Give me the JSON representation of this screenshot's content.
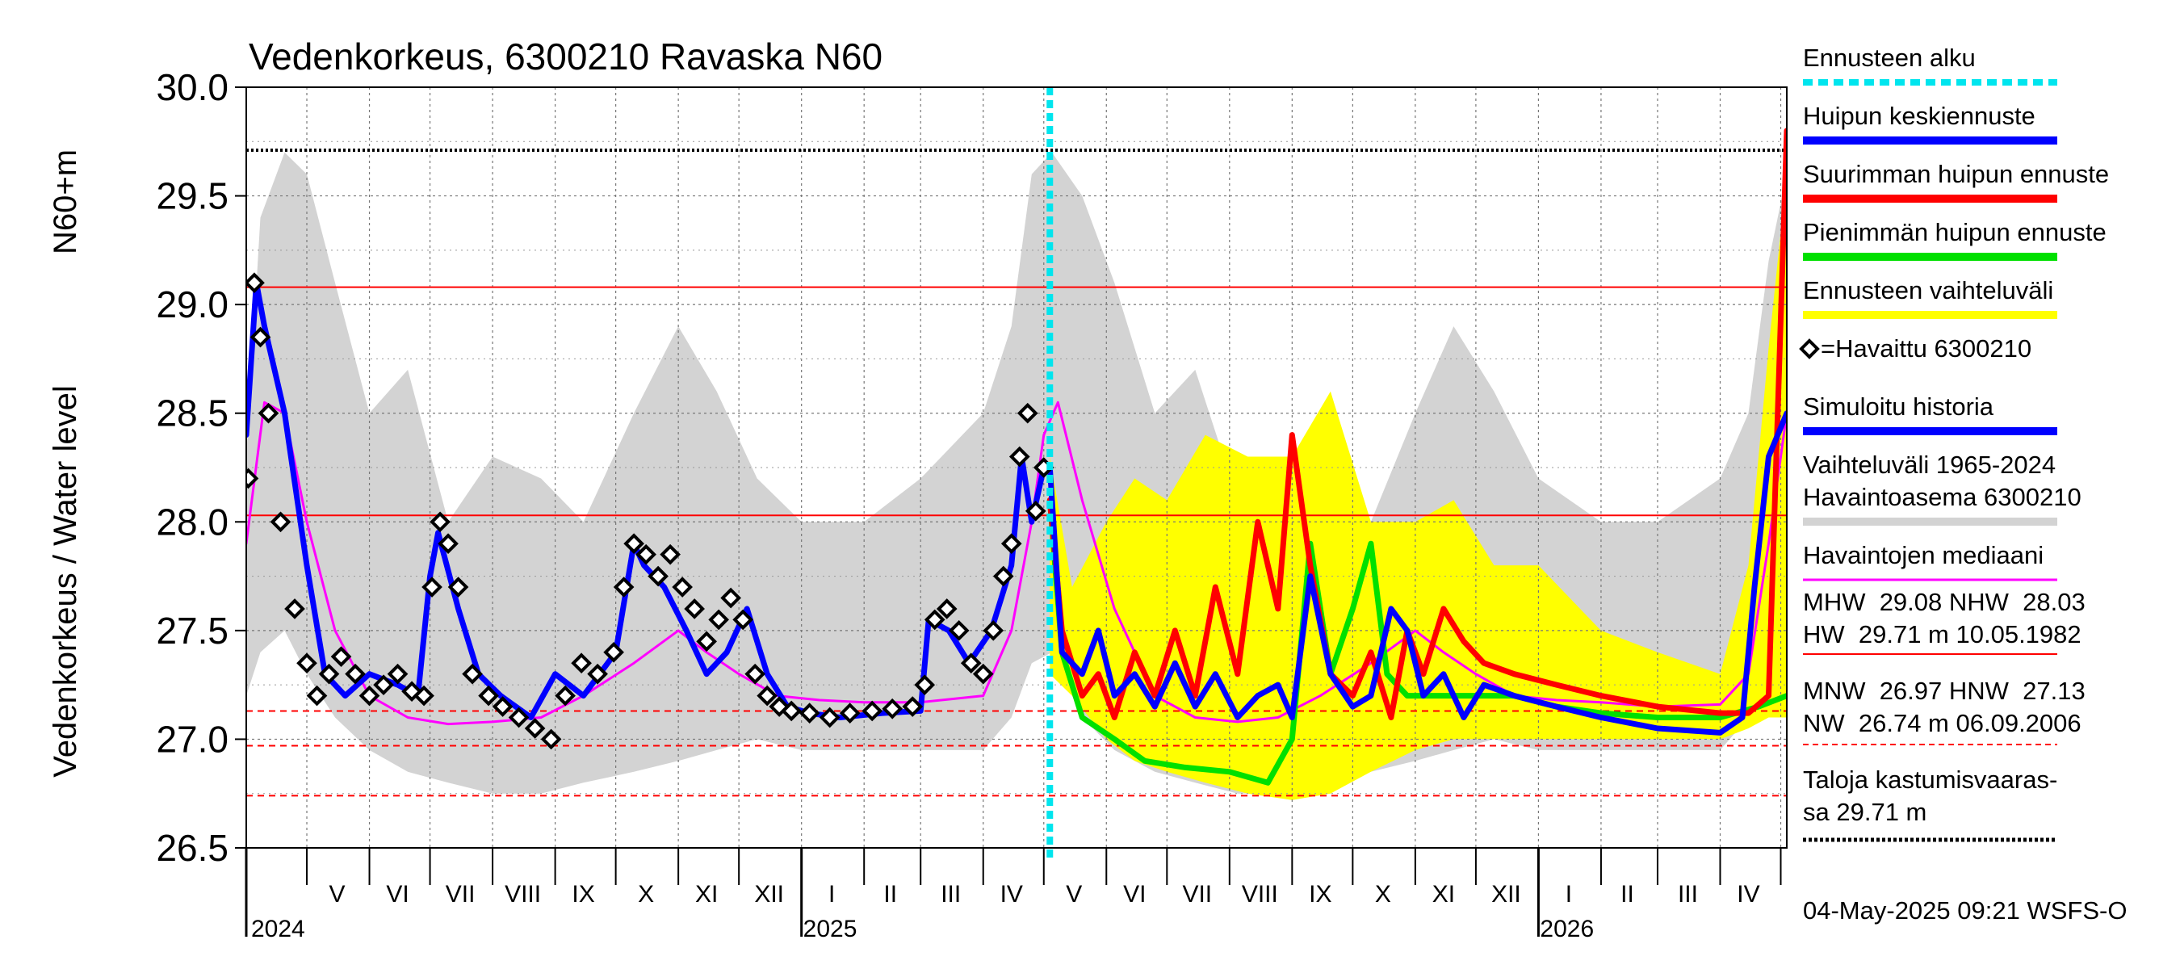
{
  "chart_data": {
    "type": "line",
    "title": "Vedenkorkeus, 6300210 Ravaska N60",
    "ylabel_main": "Vedenkorkeus / Water level",
    "ylabel_unit": "N60+m",
    "ylim": [
      26.5,
      30.0
    ],
    "y_ticks": [
      "26.5",
      "27.0",
      "27.5",
      "28.0",
      "28.5",
      "29.0",
      "29.5",
      "30.0"
    ],
    "x_range": [
      "2024-04-01",
      "2026-05-04"
    ],
    "month_labels": [
      {
        "label": "V",
        "date": "2024-05-16"
      },
      {
        "label": "VI",
        "date": "2024-06-15"
      },
      {
        "label": "VII",
        "date": "2024-07-16"
      },
      {
        "label": "VIII",
        "date": "2024-08-16"
      },
      {
        "label": "IX",
        "date": "2024-09-15"
      },
      {
        "label": "X",
        "date": "2024-10-16"
      },
      {
        "label": "XI",
        "date": "2024-11-15"
      },
      {
        "label": "XII",
        "date": "2024-12-16"
      },
      {
        "label": "I",
        "date": "2025-01-16"
      },
      {
        "label": "II",
        "date": "2025-02-14"
      },
      {
        "label": "III",
        "date": "2025-03-16"
      },
      {
        "label": "IV",
        "date": "2025-04-15"
      },
      {
        "label": "V",
        "date": "2025-05-16"
      },
      {
        "label": "VI",
        "date": "2025-06-15"
      },
      {
        "label": "VII",
        "date": "2025-07-16"
      },
      {
        "label": "VIII",
        "date": "2025-08-16"
      },
      {
        "label": "IX",
        "date": "2025-09-15"
      },
      {
        "label": "X",
        "date": "2025-10-16"
      },
      {
        "label": "XI",
        "date": "2025-11-15"
      },
      {
        "label": "XII",
        "date": "2025-12-16"
      },
      {
        "label": "I",
        "date": "2026-01-16"
      },
      {
        "label": "II",
        "date": "2026-02-14"
      },
      {
        "label": "III",
        "date": "2026-03-16"
      },
      {
        "label": "IV",
        "date": "2026-04-15"
      }
    ],
    "year_labels": [
      {
        "label": "2024",
        "date": "2024-04-01"
      },
      {
        "label": "2025",
        "date": "2025-01-01"
      },
      {
        "label": "2026",
        "date": "2026-01-01"
      }
    ],
    "forecast_start": "2025-05-04",
    "reference_lines": [
      {
        "name": "HW",
        "value": 29.71,
        "color": "#000000",
        "style": "dotted"
      },
      {
        "name": "MHW",
        "value": 29.08,
        "color": "#ff0000",
        "style": "solid"
      },
      {
        "name": "NHW",
        "value": 28.03,
        "color": "#ff0000",
        "style": "solid"
      },
      {
        "name": "HNW",
        "value": 27.13,
        "color": "#ff0000",
        "style": "dashed"
      },
      {
        "name": "MNW",
        "value": 26.97,
        "color": "#ff0000",
        "style": "dashed"
      },
      {
        "name": "NW",
        "value": 26.74,
        "color": "#ff0000",
        "style": "dashed"
      }
    ],
    "series": [
      {
        "name": "Vaihteluväli 1965-2024 Havaintoasema 6300210",
        "kind": "band",
        "color": "#d3d3d3",
        "x": [
          "2024-04-01",
          "2024-04-08",
          "2024-04-20",
          "2024-05-01",
          "2024-05-15",
          "2024-06-01",
          "2024-06-20",
          "2024-07-10",
          "2024-08-01",
          "2024-08-25",
          "2024-09-15",
          "2024-10-10",
          "2024-11-01",
          "2024-11-20",
          "2024-12-10",
          "2025-01-01",
          "2025-02-01",
          "2025-03-01",
          "2025-04-01",
          "2025-04-15",
          "2025-04-25",
          "2025-05-05",
          "2025-05-20",
          "2025-06-05",
          "2025-06-25",
          "2025-07-15",
          "2025-08-05",
          "2025-08-25",
          "2025-09-15",
          "2025-10-10",
          "2025-11-01",
          "2025-11-20",
          "2025-12-10",
          "2026-01-01",
          "2026-02-01",
          "2026-03-01",
          "2026-04-01",
          "2026-04-15",
          "2026-04-25",
          "2026-05-04"
        ],
        "low": [
          27.2,
          27.4,
          27.5,
          27.3,
          27.1,
          26.95,
          26.85,
          26.8,
          26.75,
          26.75,
          26.8,
          26.85,
          26.9,
          26.95,
          27.0,
          26.95,
          26.95,
          26.95,
          26.95,
          27.1,
          27.35,
          27.4,
          27.1,
          26.95,
          26.85,
          26.8,
          26.75,
          26.75,
          26.8,
          26.85,
          26.9,
          26.95,
          27.0,
          26.95,
          26.95,
          26.95,
          26.95,
          27.1,
          27.35,
          27.4
        ],
        "high": [
          28.3,
          29.4,
          29.7,
          29.6,
          29.1,
          28.5,
          28.7,
          28.0,
          28.3,
          28.2,
          28.0,
          28.5,
          28.9,
          28.6,
          28.2,
          28.0,
          28.0,
          28.2,
          28.5,
          28.9,
          29.6,
          29.7,
          29.5,
          29.1,
          28.5,
          28.7,
          28.1,
          28.3,
          28.2,
          28.0,
          28.5,
          28.9,
          28.6,
          28.2,
          28.0,
          28.0,
          28.2,
          28.5,
          29.2,
          29.6
        ]
      },
      {
        "name": "Ennusteen vaihteluväli",
        "kind": "band",
        "color": "#ffff00",
        "x": [
          "2025-05-04",
          "2025-05-15",
          "2025-06-01",
          "2025-06-15",
          "2025-07-01",
          "2025-07-20",
          "2025-08-10",
          "2025-09-01",
          "2025-09-20",
          "2025-10-10",
          "2025-11-01",
          "2025-11-20",
          "2025-12-10",
          "2026-01-01",
          "2026-02-01",
          "2026-03-01",
          "2026-04-01",
          "2026-04-15",
          "2026-04-25",
          "2026-05-04"
        ],
        "low": [
          27.3,
          27.2,
          27.0,
          26.9,
          26.85,
          26.8,
          26.75,
          26.72,
          26.75,
          26.85,
          26.95,
          27.0,
          27.0,
          27.0,
          27.0,
          27.0,
          27.0,
          27.05,
          27.1,
          27.1
        ],
        "high": [
          28.3,
          27.7,
          28.0,
          28.2,
          28.1,
          28.4,
          28.3,
          28.3,
          28.6,
          28.0,
          28.0,
          28.1,
          27.8,
          27.8,
          27.5,
          27.4,
          27.3,
          27.8,
          28.8,
          29.6
        ]
      },
      {
        "name": "Havaintojen mediaani",
        "kind": "line",
        "color": "#ff00ff",
        "x": [
          "2024-04-01",
          "2024-04-10",
          "2024-04-20",
          "2024-05-01",
          "2024-05-15",
          "2024-06-01",
          "2024-06-20",
          "2024-07-10",
          "2024-08-01",
          "2024-08-25",
          "2024-09-15",
          "2024-10-10",
          "2024-11-01",
          "2024-11-15",
          "2024-12-01",
          "2024-12-20",
          "2025-01-10",
          "2025-02-01",
          "2025-03-01",
          "2025-04-01",
          "2025-04-15",
          "2025-04-25",
          "2025-05-01",
          "2025-05-08",
          "2025-05-20",
          "2025-06-05",
          "2025-06-25",
          "2025-07-15",
          "2025-08-05",
          "2025-08-25",
          "2025-09-15",
          "2025-10-10",
          "2025-11-01",
          "2025-11-15",
          "2025-12-01",
          "2025-12-20",
          "2026-01-10",
          "2026-02-01",
          "2026-03-01",
          "2026-04-01",
          "2026-04-15",
          "2026-04-25",
          "2026-05-04"
        ],
        "y": [
          27.9,
          28.55,
          28.5,
          28.0,
          27.5,
          27.2,
          27.1,
          27.07,
          27.08,
          27.1,
          27.2,
          27.35,
          27.5,
          27.4,
          27.3,
          27.2,
          27.18,
          27.17,
          27.17,
          27.2,
          27.5,
          28.0,
          28.4,
          28.55,
          28.1,
          27.6,
          27.2,
          27.1,
          27.08,
          27.1,
          27.2,
          27.35,
          27.5,
          27.4,
          27.3,
          27.2,
          27.18,
          27.17,
          27.15,
          27.16,
          27.3,
          27.9,
          28.5
        ]
      },
      {
        "name": "Simuloitu historia",
        "kind": "line",
        "color": "#0000ff",
        "x": [
          "2024-04-01",
          "2024-04-06",
          "2024-04-10",
          "2024-04-20",
          "2024-05-01",
          "2024-05-10",
          "2024-05-20",
          "2024-06-01",
          "2024-06-15",
          "2024-06-25",
          "2024-07-01",
          "2024-07-05",
          "2024-07-15",
          "2024-07-25",
          "2024-08-05",
          "2024-08-20",
          "2024-09-01",
          "2024-09-15",
          "2024-10-01",
          "2024-10-10",
          "2024-10-15",
          "2024-10-25",
          "2024-11-05",
          "2024-11-15",
          "2024-11-25",
          "2024-12-05",
          "2024-12-15",
          "2024-12-25",
          "2025-01-05",
          "2025-01-20",
          "2025-02-10",
          "2025-03-01",
          "2025-03-05",
          "2025-03-15",
          "2025-03-25",
          "2025-04-05",
          "2025-04-15",
          "2025-04-20",
          "2025-04-25",
          "2025-05-01"
        ],
        "y": [
          28.4,
          29.1,
          28.9,
          28.5,
          27.8,
          27.3,
          27.2,
          27.3,
          27.25,
          27.2,
          27.75,
          27.95,
          27.6,
          27.3,
          27.2,
          27.1,
          27.3,
          27.2,
          27.4,
          27.9,
          27.8,
          27.7,
          27.5,
          27.3,
          27.4,
          27.6,
          27.3,
          27.15,
          27.12,
          27.1,
          27.12,
          27.13,
          27.55,
          27.5,
          27.35,
          27.5,
          27.8,
          28.3,
          28.0,
          28.25
        ]
      },
      {
        "name": "Huipun keskiennuste",
        "kind": "line",
        "color": "#0000ff",
        "x": [
          "2025-05-04",
          "2025-05-10",
          "2025-05-20",
          "2025-05-28",
          "2025-06-05",
          "2025-06-15",
          "2025-06-25",
          "2025-07-05",
          "2025-07-15",
          "2025-07-25",
          "2025-08-05",
          "2025-08-15",
          "2025-08-25",
          "2025-09-01",
          "2025-09-10",
          "2025-09-20",
          "2025-10-01",
          "2025-10-10",
          "2025-10-20",
          "2025-10-28",
          "2025-11-05",
          "2025-11-15",
          "2025-11-25",
          "2025-12-05",
          "2025-12-20",
          "2026-01-10",
          "2026-02-01",
          "2026-03-01",
          "2026-04-01",
          "2026-04-12",
          "2026-04-18",
          "2026-04-25",
          "2026-05-04"
        ],
        "y": [
          28.25,
          27.4,
          27.3,
          27.5,
          27.2,
          27.3,
          27.15,
          27.35,
          27.15,
          27.3,
          27.1,
          27.2,
          27.25,
          27.1,
          27.75,
          27.3,
          27.15,
          27.2,
          27.6,
          27.5,
          27.2,
          27.3,
          27.1,
          27.25,
          27.2,
          27.15,
          27.1,
          27.05,
          27.03,
          27.1,
          27.7,
          28.3,
          28.5
        ]
      },
      {
        "name": "Suurimman huipun ennuste",
        "kind": "line",
        "color": "#ff0000",
        "x": [
          "2025-05-04",
          "2025-05-10",
          "2025-05-20",
          "2025-05-28",
          "2025-06-05",
          "2025-06-15",
          "2025-06-25",
          "2025-07-05",
          "2025-07-15",
          "2025-07-25",
          "2025-08-05",
          "2025-08-15",
          "2025-08-25",
          "2025-09-01",
          "2025-09-10",
          "2025-09-20",
          "2025-10-01",
          "2025-10-10",
          "2025-10-20",
          "2025-10-28",
          "2025-11-05",
          "2025-11-15",
          "2025-11-25",
          "2025-12-05",
          "2025-12-20",
          "2026-01-10",
          "2026-02-01",
          "2026-03-01",
          "2026-04-01",
          "2026-04-15",
          "2026-04-25",
          "2026-05-04"
        ],
        "y": [
          28.1,
          27.5,
          27.2,
          27.3,
          27.1,
          27.4,
          27.2,
          27.5,
          27.2,
          27.7,
          27.3,
          28.0,
          27.6,
          28.4,
          27.8,
          27.3,
          27.2,
          27.4,
          27.1,
          27.5,
          27.3,
          27.6,
          27.45,
          27.35,
          27.3,
          27.25,
          27.2,
          27.15,
          27.12,
          27.12,
          27.2,
          29.8
        ]
      },
      {
        "name": "Pienimmän huipun ennuste",
        "kind": "line",
        "color": "#00e000",
        "x": [
          "2025-05-04",
          "2025-05-10",
          "2025-05-20",
          "2025-06-05",
          "2025-06-20",
          "2025-07-10",
          "2025-08-01",
          "2025-08-20",
          "2025-09-01",
          "2025-09-10",
          "2025-09-20",
          "2025-10-01",
          "2025-10-10",
          "2025-10-18",
          "2025-10-28",
          "2025-11-10",
          "2025-12-01",
          "2025-12-20",
          "2026-01-10",
          "2026-02-01",
          "2026-03-01",
          "2026-04-01",
          "2026-04-20",
          "2026-05-04"
        ],
        "y": [
          28.1,
          27.4,
          27.1,
          27.0,
          26.9,
          26.87,
          26.85,
          26.8,
          27.0,
          27.9,
          27.3,
          27.6,
          27.9,
          27.3,
          27.2,
          27.2,
          27.2,
          27.2,
          27.15,
          27.12,
          27.1,
          27.1,
          27.15,
          27.2
        ]
      },
      {
        "name": "Havaittu 6300210",
        "kind": "markers",
        "color": "#000000",
        "x": [
          "2024-04-02",
          "2024-04-05",
          "2024-04-08",
          "2024-04-12",
          "2024-04-18",
          "2024-04-25",
          "2024-05-01",
          "2024-05-06",
          "2024-05-12",
          "2024-05-18",
          "2024-05-25",
          "2024-06-01",
          "2024-06-08",
          "2024-06-15",
          "2024-06-22",
          "2024-06-28",
          "2024-07-02",
          "2024-07-06",
          "2024-07-10",
          "2024-07-15",
          "2024-07-22",
          "2024-07-30",
          "2024-08-06",
          "2024-08-14",
          "2024-08-22",
          "2024-08-30",
          "2024-09-06",
          "2024-09-14",
          "2024-09-22",
          "2024-09-30",
          "2024-10-05",
          "2024-10-10",
          "2024-10-16",
          "2024-10-22",
          "2024-10-28",
          "2024-11-03",
          "2024-11-09",
          "2024-11-15",
          "2024-11-21",
          "2024-11-27",
          "2024-12-03",
          "2024-12-09",
          "2024-12-15",
          "2024-12-21",
          "2024-12-27",
          "2025-01-05",
          "2025-01-15",
          "2025-01-25",
          "2025-02-05",
          "2025-02-15",
          "2025-02-25",
          "2025-03-03",
          "2025-03-08",
          "2025-03-14",
          "2025-03-20",
          "2025-03-26",
          "2025-04-01",
          "2025-04-06",
          "2025-04-11",
          "2025-04-15",
          "2025-04-19",
          "2025-04-23",
          "2025-04-27",
          "2025-05-01"
        ],
        "y": [
          28.2,
          29.1,
          28.85,
          28.5,
          28.0,
          27.6,
          27.35,
          27.2,
          27.3,
          27.38,
          27.3,
          27.2,
          27.25,
          27.3,
          27.22,
          27.2,
          27.7,
          28.0,
          27.9,
          27.7,
          27.3,
          27.2,
          27.15,
          27.1,
          27.05,
          27.0,
          27.2,
          27.35,
          27.3,
          27.4,
          27.7,
          27.9,
          27.85,
          27.75,
          27.85,
          27.7,
          27.6,
          27.45,
          27.55,
          27.65,
          27.55,
          27.3,
          27.2,
          27.15,
          27.13,
          27.12,
          27.1,
          27.12,
          27.13,
          27.14,
          27.15,
          27.25,
          27.55,
          27.6,
          27.5,
          27.35,
          27.3,
          27.5,
          27.75,
          27.9,
          28.3,
          28.5,
          28.05,
          28.25
        ]
      }
    ],
    "legend": {
      "placement": "right",
      "entries": [
        {
          "label": "Ennusteen alku",
          "color": "#00e5ee",
          "style": "dashed"
        },
        {
          "label": "Huipun keskiennuste",
          "color": "#0000ff",
          "style": "solid"
        },
        {
          "label": "Suurimman huipun ennuste",
          "color": "#ff0000",
          "style": "solid"
        },
        {
          "label": "Pienimmän huipun ennuste",
          "color": "#00e000",
          "style": "solid"
        },
        {
          "label": "Ennusteen vaihteluväli",
          "color": "#ffff00",
          "style": "solid"
        },
        {
          "label": "=Havaittu 6300210",
          "color": "#000000",
          "style": "marker"
        },
        {
          "label": "Simuloitu historia",
          "color": "#0000ff",
          "style": "solid"
        },
        {
          "label_lines": [
            "Vaihteluväli 1965-2024",
            " Havaintoasema 6300210"
          ],
          "color": "#d3d3d3",
          "style": "solid"
        },
        {
          "label": "Havaintojen mediaani",
          "color": "#ff00ff",
          "style": "thin"
        }
      ]
    },
    "stats": {
      "line1": "MHW  29.08 NHW  28.03",
      "line2": "HW  29.71 m 10.05.1982",
      "line3": "MNW  26.97 HNW  27.13",
      "line4": "NW  26.74 m 06.09.2006"
    },
    "flood_note": {
      "line1": "Taloja kastumisvaaras-",
      "line2": "sa 29.71 m"
    },
    "footer": "04-May-2025 09:21 WSFS-O"
  }
}
